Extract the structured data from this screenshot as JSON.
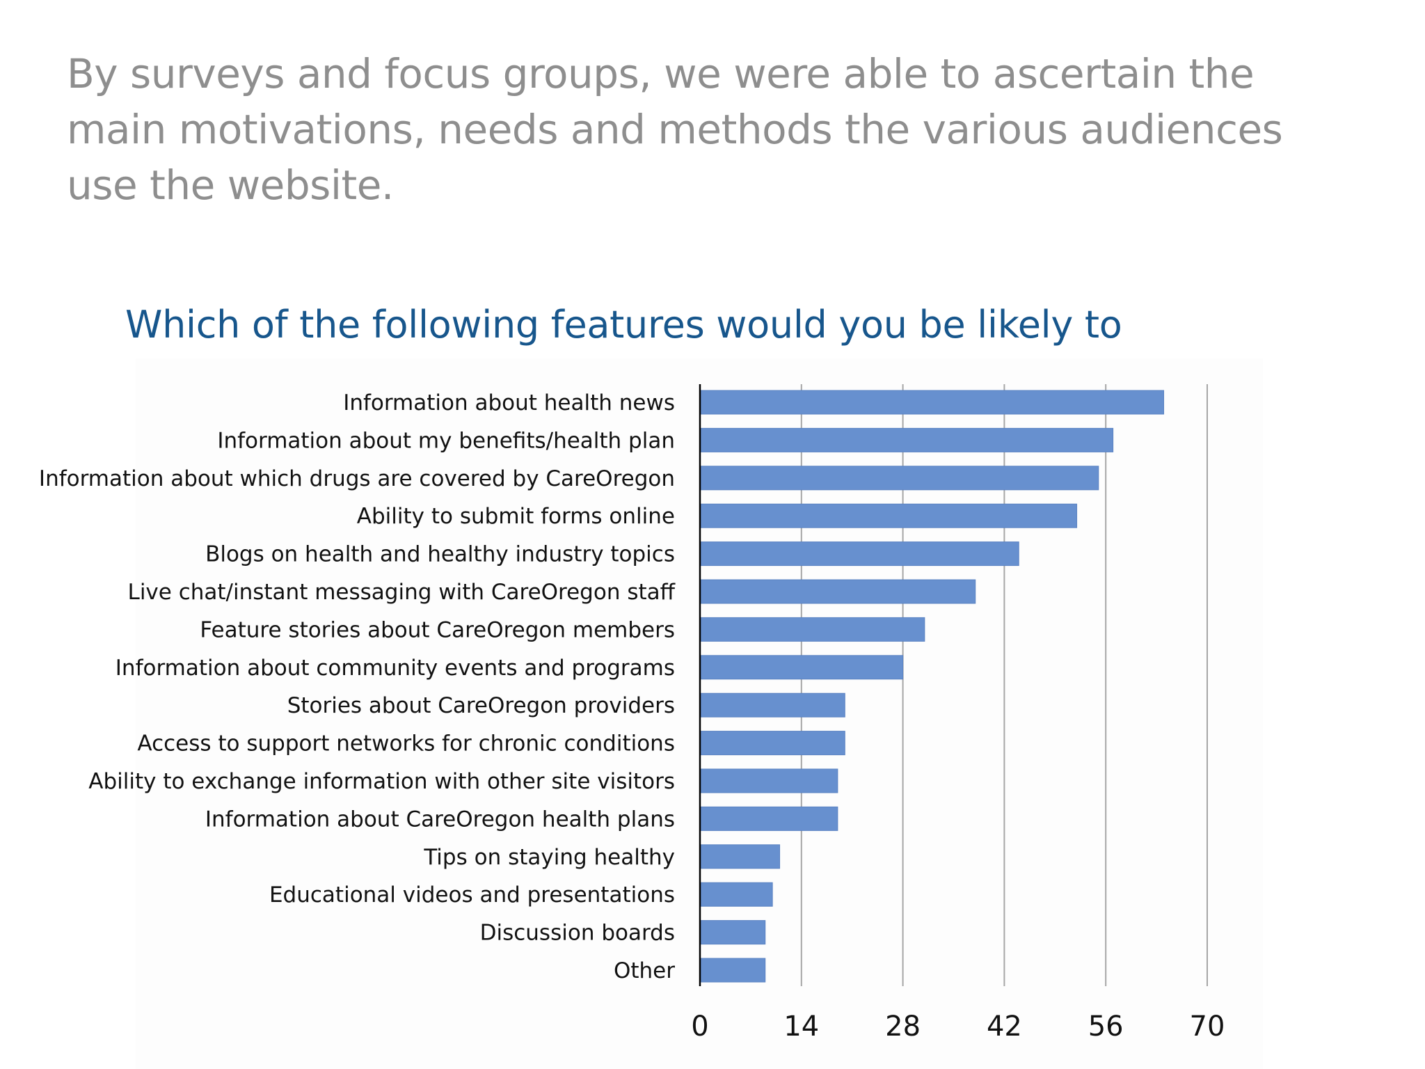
{
  "slide": {
    "heading": "By surveys and focus groups, we were able to ascertain the main motivations, needs and methods the various audiences use the website."
  },
  "colors": {
    "bar": "#6790cf",
    "bar_edge": "#5a82c2",
    "title": "#17568c",
    "heading": "#8e8e8e",
    "grid": "#a6a6a6"
  },
  "chart_data": {
    "type": "bar",
    "orientation": "horizontal",
    "title": "Which of the following features would you be likely to",
    "xlabel": "",
    "ylabel": "",
    "xlim": [
      0,
      70
    ],
    "ticks": [
      0,
      14,
      28,
      42,
      56,
      70
    ],
    "grid": true,
    "categories": [
      "Information about health news",
      "Information about my benefits/health plan",
      "Information about which drugs are covered by CareOregon",
      "Ability to submit forms online",
      "Blogs on health and healthy industry topics",
      "Live chat/instant messaging with CareOregon staff",
      "Feature stories about CareOregon members",
      "Information about community events and programs",
      "Stories about CareOregon providers",
      "Access to support networks for chronic conditions",
      "Ability to exchange information with other site visitors",
      "Information about CareOregon health plans",
      "Tips on staying healthy",
      "Educational videos and presentations",
      "Discussion boards",
      "Other"
    ],
    "values": [
      64,
      57,
      55,
      52,
      44,
      38,
      31,
      28,
      20,
      20,
      19,
      19,
      11,
      10,
      9,
      9
    ]
  }
}
